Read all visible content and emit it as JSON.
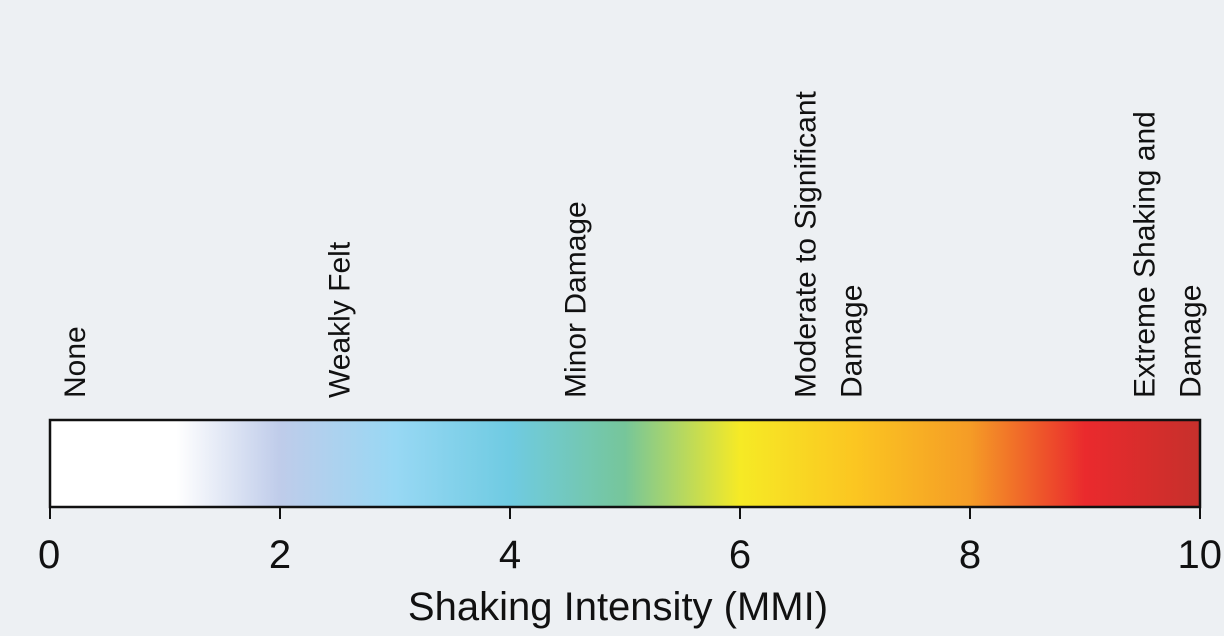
{
  "chart_data": {
    "type": "colorbar",
    "title": "",
    "xlabel": "Shaking Intensity (MMI)",
    "xlim": [
      0,
      10
    ],
    "ticks": [
      0,
      2,
      4,
      6,
      8,
      10
    ],
    "tick_labels": [
      "0",
      "2",
      "4",
      "6",
      "8",
      "10"
    ],
    "categories": [
      {
        "value": 0.2,
        "lines": [
          "None"
        ]
      },
      {
        "value": 2.5,
        "lines": [
          "Weakly Felt"
        ]
      },
      {
        "value": 4.55,
        "lines": [
          "Minor Damage"
        ]
      },
      {
        "value": 6.75,
        "lines": [
          "Moderate to Significant",
          "Damage"
        ]
      },
      {
        "value": 9.7,
        "lines": [
          "Extreme Shaking and",
          "Damage"
        ]
      }
    ],
    "color_stops": [
      {
        "value": 0,
        "color": "#ffffff"
      },
      {
        "value": 1.1,
        "color": "#ffffff"
      },
      {
        "value": 2.0,
        "color": "#bfccea"
      },
      {
        "value": 3.0,
        "color": "#98d8f4"
      },
      {
        "value": 4.0,
        "color": "#6fcbe2"
      },
      {
        "value": 5.0,
        "color": "#76c69a"
      },
      {
        "value": 6.0,
        "color": "#f6ea25"
      },
      {
        "value": 7.0,
        "color": "#fbc621"
      },
      {
        "value": 8.0,
        "color": "#f59c26"
      },
      {
        "value": 9.0,
        "color": "#ea2a2d"
      },
      {
        "value": 10.0,
        "color": "#c6302c"
      }
    ],
    "bar_border_color": "#111111",
    "background_color": "#edf0f3"
  }
}
